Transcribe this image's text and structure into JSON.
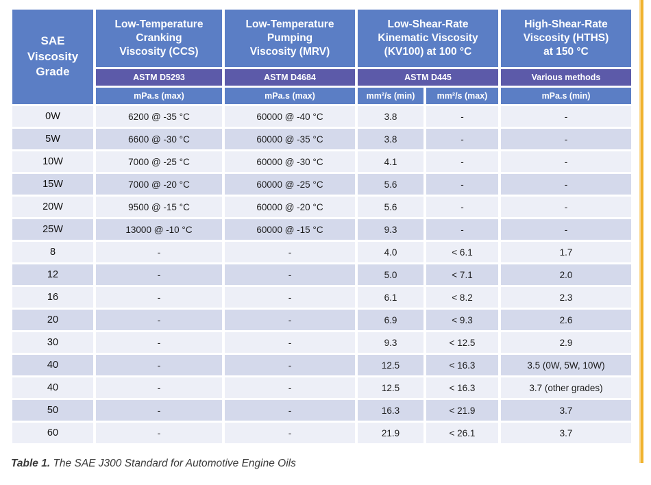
{
  "colors": {
    "header_blue": "#5B7EC5",
    "astm_purple": "#5C5AA9",
    "row_light": "#EDEFF7",
    "row_dark": "#D4D9EB",
    "accent_yellow": "#F0B32F"
  },
  "table": {
    "header": {
      "sae": "SAE\nViscosity\nGrade",
      "ccs": "Low-Temperature\nCranking\nViscosity (CCS)",
      "mrv": "Low-Temperature\nPumping\nViscosity (MRV)",
      "kv100": "Low-Shear-Rate\nKinematic Viscosity\n(KV100) at 100 °C",
      "hths": "High-Shear-Rate\nViscosity (HTHS)\nat 150 °C"
    },
    "methods": {
      "ccs": "ASTM D5293",
      "mrv": "ASTM D4684",
      "kv100": "ASTM D445",
      "hths": "Various methods"
    },
    "units": {
      "ccs": "mPa.s (max)",
      "mrv": "mPa.s (max)",
      "kv_min": "mm²/s (min)",
      "kv_max": "mm²/s (max)",
      "hths": "mPa.s (min)"
    },
    "rows": [
      {
        "grade": "0W",
        "ccs": "6200 @ -35 °C",
        "mrv": "60000 @ -40 °C",
        "kv_min": "3.8",
        "kv_max": "-",
        "hths": "-"
      },
      {
        "grade": "5W",
        "ccs": "6600 @ -30 °C",
        "mrv": "60000 @ -35 °C",
        "kv_min": "3.8",
        "kv_max": "-",
        "hths": "-"
      },
      {
        "grade": "10W",
        "ccs": "7000 @ -25 °C",
        "mrv": "60000 @ -30 °C",
        "kv_min": "4.1",
        "kv_max": "-",
        "hths": "-"
      },
      {
        "grade": "15W",
        "ccs": "7000 @ -20 °C",
        "mrv": "60000 @ -25 °C",
        "kv_min": "5.6",
        "kv_max": "-",
        "hths": "-"
      },
      {
        "grade": "20W",
        "ccs": "9500 @ -15 °C",
        "mrv": "60000 @ -20 °C",
        "kv_min": "5.6",
        "kv_max": "-",
        "hths": "-"
      },
      {
        "grade": "25W",
        "ccs": "13000 @ -10 °C",
        "mrv": "60000 @ -15 °C",
        "kv_min": "9.3",
        "kv_max": "-",
        "hths": "-"
      },
      {
        "grade": "8",
        "ccs": "-",
        "mrv": "-",
        "kv_min": "4.0",
        "kv_max": "< 6.1",
        "hths": "1.7"
      },
      {
        "grade": "12",
        "ccs": "-",
        "mrv": "-",
        "kv_min": "5.0",
        "kv_max": "< 7.1",
        "hths": "2.0"
      },
      {
        "grade": "16",
        "ccs": "-",
        "mrv": "-",
        "kv_min": "6.1",
        "kv_max": "< 8.2",
        "hths": "2.3"
      },
      {
        "grade": "20",
        "ccs": "-",
        "mrv": "-",
        "kv_min": "6.9",
        "kv_max": "< 9.3",
        "hths": "2.6"
      },
      {
        "grade": "30",
        "ccs": "-",
        "mrv": "-",
        "kv_min": "9.3",
        "kv_max": "< 12.5",
        "hths": "2.9"
      },
      {
        "grade": "40",
        "ccs": "-",
        "mrv": "-",
        "kv_min": "12.5",
        "kv_max": "< 16.3",
        "hths": "3.5 (0W, 5W, 10W)"
      },
      {
        "grade": "40",
        "ccs": "-",
        "mrv": "-",
        "kv_min": "12.5",
        "kv_max": "< 16.3",
        "hths": "3.7 (other grades)"
      },
      {
        "grade": "50",
        "ccs": "-",
        "mrv": "-",
        "kv_min": "16.3",
        "kv_max": "< 21.9",
        "hths": "3.7"
      },
      {
        "grade": "60",
        "ccs": "-",
        "mrv": "-",
        "kv_min": "21.9",
        "kv_max": "< 26.1",
        "hths": "3.7"
      }
    ]
  },
  "caption": {
    "label": "Table 1.",
    "text": " The SAE J300 Standard for Automotive Engine Oils"
  }
}
